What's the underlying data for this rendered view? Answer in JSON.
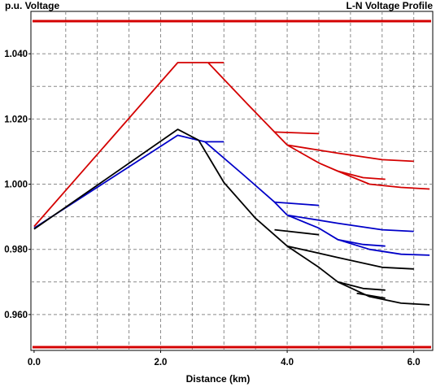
{
  "chart_data": {
    "type": "line",
    "title": "L-N Voltage Profile",
    "xlabel": "Distance (km)",
    "ylabel": "p.u. Voltage",
    "xlim": [
      -0.05,
      6.3
    ],
    "ylim": [
      0.949,
      1.053
    ],
    "x_ticks": [
      0.0,
      2.0,
      4.0,
      6.0
    ],
    "x_tick_labels": [
      "0.0",
      "2.0",
      "4.0",
      "6.0"
    ],
    "y_ticks": [
      0.96,
      0.98,
      1.0,
      1.02,
      1.04
    ],
    "y_tick_labels": [
      "0.960",
      "0.980",
      "1.000",
      "1.020",
      "1.040"
    ],
    "x_grid": [
      0.5,
      1.0,
      1.5,
      2.0,
      2.5,
      3.0,
      3.5,
      4.0,
      4.5,
      5.0,
      5.5,
      6.0
    ],
    "y_grid": [
      0.96,
      0.97,
      0.98,
      0.99,
      1.0,
      1.01,
      1.02,
      1.03,
      1.04
    ],
    "grid": true,
    "limit_lines": [
      {
        "y": 1.05,
        "color": "#d40000"
      },
      {
        "y": 0.95,
        "color": "#d40000"
      }
    ],
    "series": [
      {
        "color": "#d40000",
        "points": [
          [
            0.0,
            0.987
          ],
          [
            2.27,
            1.0373
          ],
          [
            2.75,
            1.0373
          ]
        ]
      },
      {
        "color": "#d40000",
        "points": [
          [
            2.75,
            1.0373
          ],
          [
            3.0,
            1.0373
          ]
        ]
      },
      {
        "color": "#d40000",
        "points": [
          [
            2.75,
            1.0373
          ],
          [
            3.4,
            1.024
          ],
          [
            3.8,
            1.016
          ],
          [
            4.0,
            1.012
          ]
        ]
      },
      {
        "color": "#d40000",
        "points": [
          [
            3.8,
            1.016
          ],
          [
            4.5,
            1.0155
          ]
        ]
      },
      {
        "color": "#d40000",
        "points": [
          [
            4.0,
            1.012
          ],
          [
            4.8,
            1.0095
          ],
          [
            5.5,
            1.0075
          ],
          [
            6.0,
            1.007
          ]
        ]
      },
      {
        "color": "#d40000",
        "points": [
          [
            4.0,
            1.012
          ],
          [
            4.5,
            1.0065
          ],
          [
            4.8,
            1.004
          ],
          [
            5.2,
            1.002
          ],
          [
            5.55,
            1.0015
          ]
        ]
      },
      {
        "color": "#d40000",
        "points": [
          [
            4.8,
            1.004
          ],
          [
            5.3,
            1.0
          ],
          [
            5.8,
            0.999
          ],
          [
            6.25,
            0.9985
          ]
        ]
      },
      {
        "color": "#0000c8",
        "points": [
          [
            0.0,
            0.9865
          ],
          [
            2.27,
            1.015
          ],
          [
            2.7,
            1.013
          ],
          [
            3.0,
            1.013
          ]
        ]
      },
      {
        "color": "#0000c8",
        "points": [
          [
            2.7,
            1.013
          ],
          [
            3.3,
            1.003
          ],
          [
            3.8,
            0.9945
          ],
          [
            4.0,
            0.9905
          ]
        ]
      },
      {
        "color": "#0000c8",
        "points": [
          [
            3.8,
            0.9945
          ],
          [
            4.5,
            0.9935
          ]
        ]
      },
      {
        "color": "#0000c8",
        "points": [
          [
            4.0,
            0.9905
          ],
          [
            4.8,
            0.988
          ],
          [
            5.5,
            0.986
          ],
          [
            6.0,
            0.9855
          ]
        ]
      },
      {
        "color": "#0000c8",
        "points": [
          [
            4.0,
            0.9905
          ],
          [
            4.5,
            0.9865
          ],
          [
            4.8,
            0.983
          ],
          [
            5.2,
            0.9815
          ],
          [
            5.55,
            0.981
          ]
        ]
      },
      {
        "color": "#0000c8",
        "points": [
          [
            4.8,
            0.983
          ],
          [
            5.3,
            0.98
          ],
          [
            5.8,
            0.9785
          ],
          [
            6.25,
            0.9782
          ]
        ]
      },
      {
        "color": "#000000",
        "points": [
          [
            0.0,
            0.9862
          ],
          [
            2.27,
            1.0168
          ],
          [
            2.6,
            1.0135
          ]
        ]
      },
      {
        "color": "#000000",
        "points": [
          [
            2.6,
            1.0135
          ],
          [
            3.0,
            1.0005
          ],
          [
            3.5,
            0.9895
          ],
          [
            4.0,
            0.981
          ]
        ]
      },
      {
        "color": "#000000",
        "points": [
          [
            3.8,
            0.986
          ],
          [
            4.5,
            0.9845
          ]
        ]
      },
      {
        "color": "#000000",
        "points": [
          [
            4.0,
            0.981
          ],
          [
            4.8,
            0.9775
          ],
          [
            5.5,
            0.9745
          ],
          [
            6.0,
            0.974
          ]
        ]
      },
      {
        "color": "#000000",
        "points": [
          [
            4.0,
            0.981
          ],
          [
            4.5,
            0.9745
          ],
          [
            4.8,
            0.97
          ],
          [
            5.2,
            0.968
          ],
          [
            5.55,
            0.9675
          ]
        ]
      },
      {
        "color": "#000000",
        "points": [
          [
            4.8,
            0.97
          ],
          [
            5.3,
            0.9655
          ],
          [
            5.8,
            0.9635
          ],
          [
            6.25,
            0.963
          ]
        ]
      },
      {
        "color": "#000000",
        "points": [
          [
            5.1,
            0.9665
          ],
          [
            5.55,
            0.965
          ]
        ]
      }
    ]
  }
}
